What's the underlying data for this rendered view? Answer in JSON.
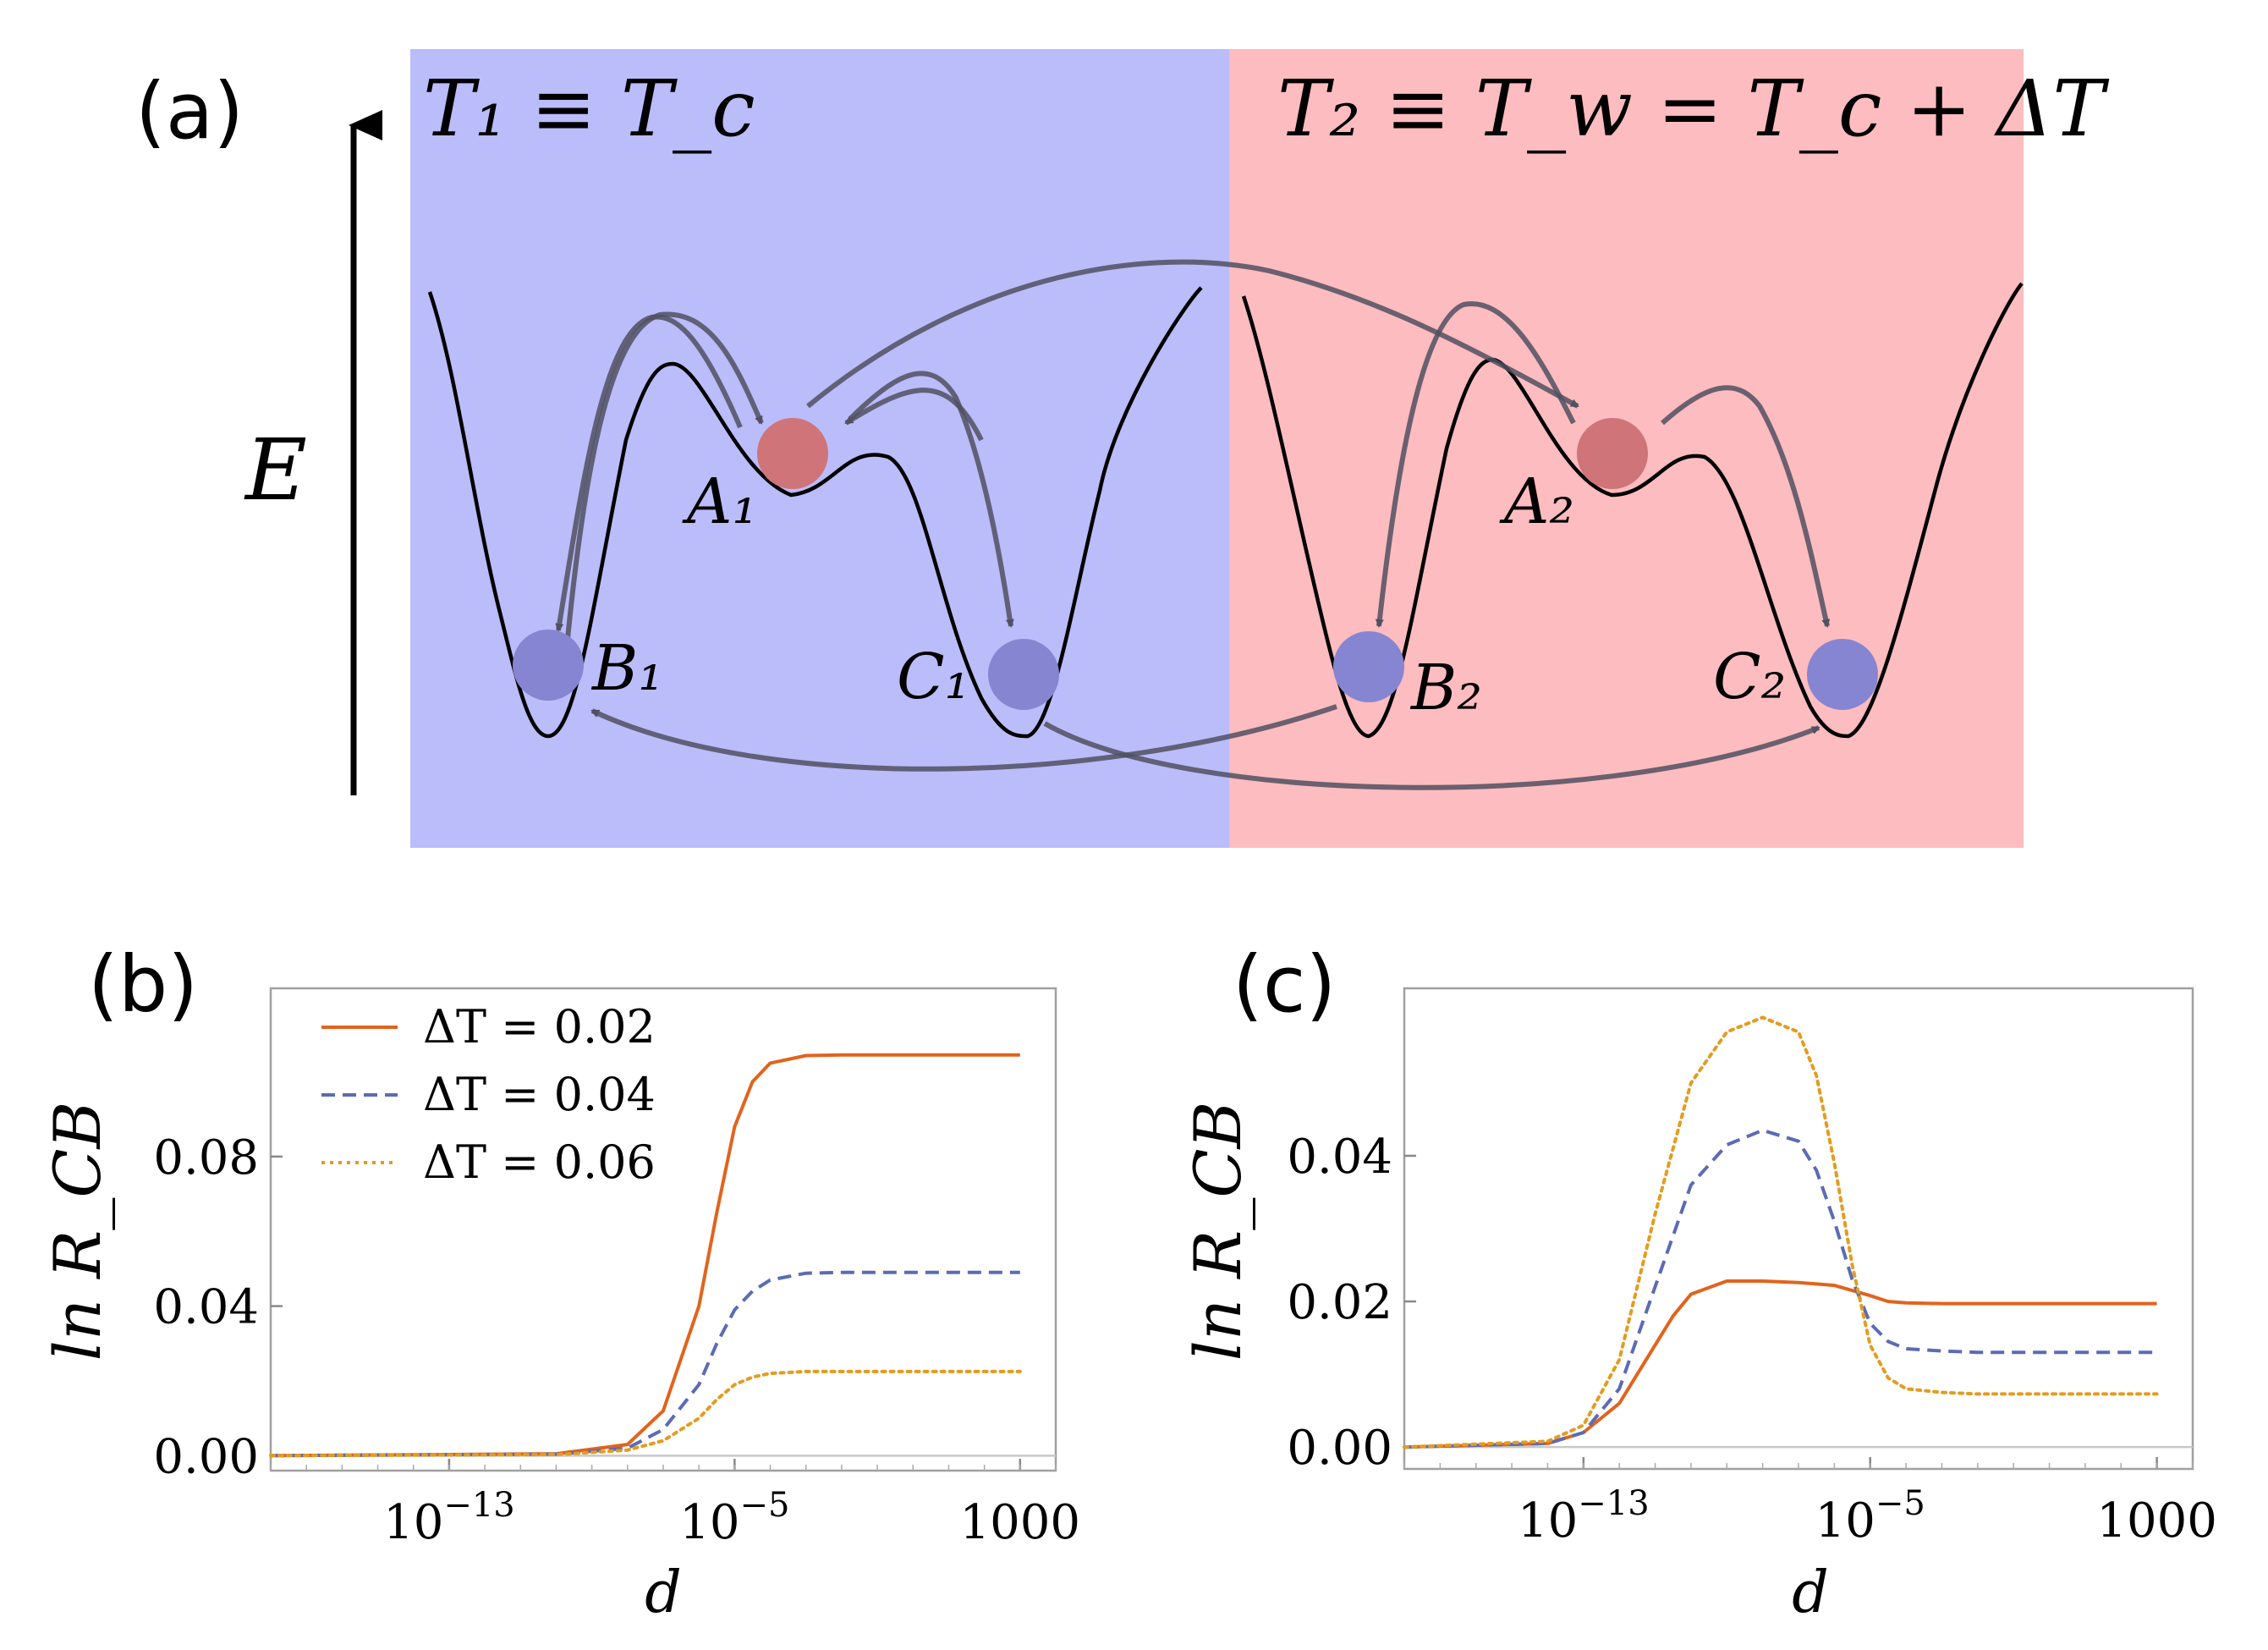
{
  "figure": {
    "panels": [
      "(a)",
      "(b)",
      "(c)"
    ]
  },
  "diagram": {
    "cold_region_label": "T₁ ≡ T_c",
    "hot_region_label": "T₂ ≡ T_w = T_c + ΔT",
    "energy_axis_label": "E",
    "states_left": [
      "A₁",
      "B₁",
      "C₁"
    ],
    "states_right": [
      "A₂",
      "B₂",
      "C₂"
    ],
    "colors": {
      "cold_bg": "#bbbcfa",
      "hot_bg": "#fdbcbf",
      "state_A": "#cf7478",
      "state_BC": "#8685d1",
      "arrow": "#505060"
    }
  },
  "chart_data": [
    {
      "type": "line",
      "panel": "(b)",
      "xscale": "log",
      "xlabel": "d",
      "ylabel": "ln R_CB",
      "xlim_log10": [
        -18,
        4
      ],
      "ylim": [
        -0.004,
        0.125
      ],
      "xticks": [
        "10^-13",
        "10^-5",
        "1000"
      ],
      "yticks": [
        "0.00",
        "0.04",
        "0.08"
      ],
      "legend": [
        "ΔT = 0.02",
        "ΔT = 0.04",
        "ΔT = 0.06"
      ],
      "legend_location": "top-left",
      "series": [
        {
          "name": "ΔT = 0.02",
          "color": "#e2631c",
          "style": "solid",
          "log10_x": [
            -18,
            -10,
            -8,
            -7,
            -6,
            -5.5,
            -5,
            -4.5,
            -4,
            -3,
            -2,
            0,
            2,
            3
          ],
          "y": [
            0,
            0.0005,
            0.003,
            0.012,
            0.04,
            0.065,
            0.088,
            0.1,
            0.105,
            0.107,
            0.1072,
            0.1072,
            0.1072,
            0.1072
          ]
        },
        {
          "name": "ΔT = 0.04",
          "color": "#5b6bb5",
          "style": "dashed",
          "log10_x": [
            -18,
            -10,
            -8,
            -7,
            -6,
            -5.5,
            -5,
            -4.5,
            -4,
            -3,
            -2,
            0,
            2,
            3
          ],
          "y": [
            0,
            0.0004,
            0.002,
            0.007,
            0.019,
            0.03,
            0.039,
            0.044,
            0.047,
            0.0488,
            0.049,
            0.049,
            0.049,
            0.049
          ]
        },
        {
          "name": "ΔT = 0.06",
          "color": "#e39c21",
          "style": "dotted",
          "log10_x": [
            -18,
            -10,
            -8,
            -7,
            -6,
            -5.5,
            -5,
            -4.5,
            -4,
            -3,
            -2,
            0,
            2,
            3
          ],
          "y": [
            0,
            0.0003,
            0.0015,
            0.004,
            0.01,
            0.015,
            0.019,
            0.021,
            0.022,
            0.0225,
            0.0225,
            0.0225,
            0.0225,
            0.0225
          ]
        }
      ]
    },
    {
      "type": "line",
      "panel": "(c)",
      "xscale": "log",
      "xlabel": "d",
      "ylabel": "ln R_CB",
      "xlim_log10": [
        -18,
        4
      ],
      "ylim": [
        -0.003,
        0.063
      ],
      "xticks": [
        "10^-13",
        "10^-5",
        "1000"
      ],
      "yticks": [
        "0.00",
        "0.02",
        "0.04"
      ],
      "series": [
        {
          "name": "ΔT = 0.02",
          "color": "#e2631c",
          "style": "solid",
          "log10_x": [
            -18,
            -14,
            -13,
            -12,
            -11,
            -10.5,
            -10,
            -9,
            -8,
            -7,
            -6,
            -5,
            -4.5,
            -4,
            -3,
            -2,
            0,
            2,
            3
          ],
          "y": [
            0,
            0.0005,
            0.002,
            0.006,
            0.014,
            0.018,
            0.021,
            0.0228,
            0.0228,
            0.0226,
            0.0222,
            0.0208,
            0.02,
            0.0198,
            0.0197,
            0.0197,
            0.0197,
            0.0197,
            0.0197
          ]
        },
        {
          "name": "ΔT = 0.04",
          "color": "#5b6bb5",
          "style": "dashed",
          "log10_x": [
            -18,
            -14,
            -13,
            -12,
            -11,
            -10,
            -9,
            -8,
            -7,
            -6.5,
            -6,
            -5.5,
            -5,
            -4.5,
            -4,
            -3,
            -2,
            0,
            2,
            3
          ],
          "y": [
            0,
            0.0005,
            0.002,
            0.008,
            0.022,
            0.036,
            0.0415,
            0.0435,
            0.042,
            0.038,
            0.031,
            0.023,
            0.017,
            0.0145,
            0.0135,
            0.0132,
            0.013,
            0.013,
            0.013,
            0.013
          ]
        },
        {
          "name": "ΔT = 0.06",
          "color": "#e39c21",
          "style": "dotted",
          "log10_x": [
            -18,
            -14,
            -13,
            -12,
            -11,
            -10,
            -9,
            -8,
            -7,
            -6.5,
            -6,
            -5.5,
            -5,
            -4.5,
            -4,
            -3,
            -2,
            0,
            2,
            3
          ],
          "y": [
            0,
            0.0008,
            0.003,
            0.012,
            0.032,
            0.05,
            0.057,
            0.059,
            0.057,
            0.051,
            0.039,
            0.025,
            0.014,
            0.0095,
            0.008,
            0.0075,
            0.0073,
            0.0073,
            0.0073,
            0.0073
          ]
        }
      ]
    }
  ]
}
